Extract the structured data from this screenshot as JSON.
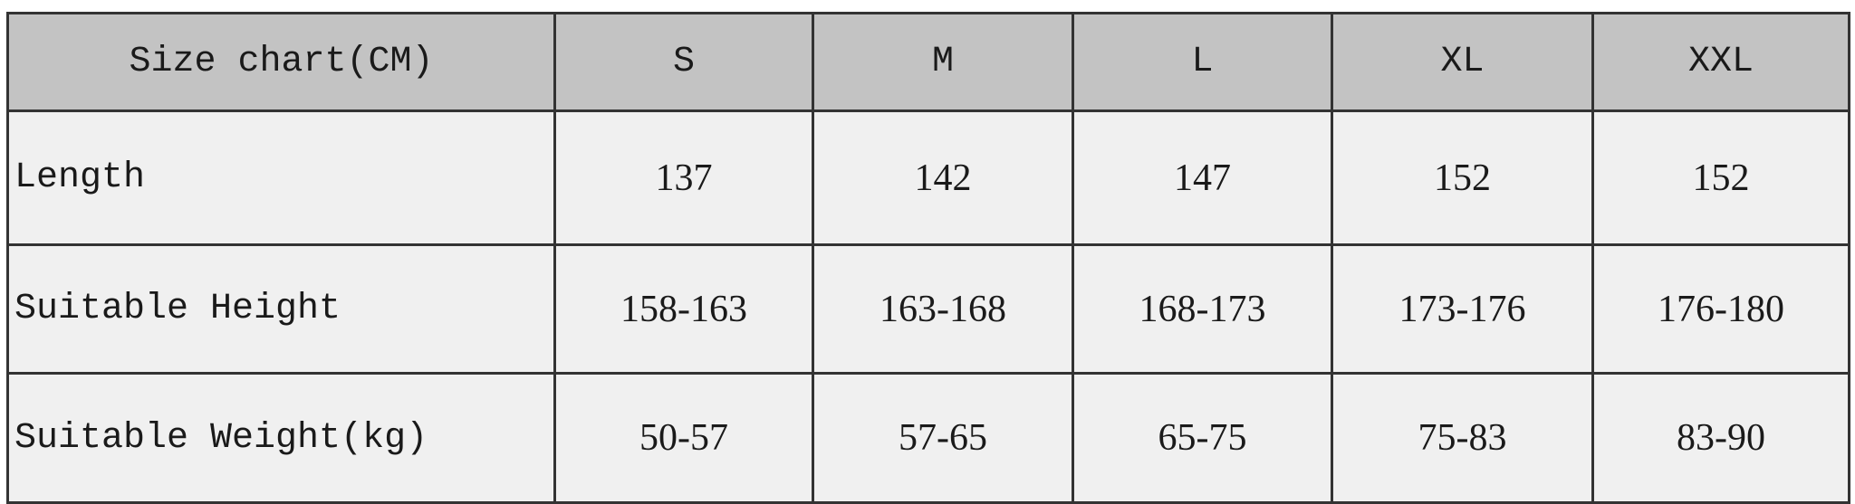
{
  "header": {
    "title": "Size chart(CM)",
    "sizes": [
      "S",
      "M",
      "L",
      "XL",
      "XXL"
    ]
  },
  "rows": [
    {
      "label": "Length",
      "values": [
        "137",
        "142",
        "147",
        "152",
        "152"
      ]
    },
    {
      "label": "Suitable Height",
      "values": [
        "158-163",
        "163-168",
        "168-173",
        "173-176",
        "176-180"
      ]
    },
    {
      "label": "Suitable Weight(kg)",
      "values": [
        "50-57",
        "57-65",
        "65-75",
        "75-83",
        "83-90"
      ]
    }
  ],
  "colors": {
    "header_bg": "#c3c3c3",
    "cell_bg": "#f0f0f0",
    "border": "#333333"
  }
}
